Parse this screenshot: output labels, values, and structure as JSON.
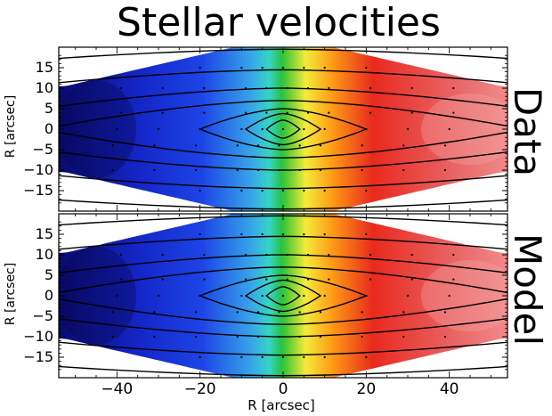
{
  "chart_data": {
    "type": "heatmap",
    "title": "Stellar velocities",
    "panels": [
      {
        "label": "Data",
        "ylabel": "R [arcsec]"
      },
      {
        "label": "Model",
        "ylabel": "R [arcsec]"
      }
    ],
    "xlabel": "R [arcsec]",
    "xlim": [
      -54,
      54
    ],
    "ylim": [
      -20,
      20
    ],
    "xticks": [
      -40,
      -20,
      0,
      20,
      40
    ],
    "yticks": [
      -15,
      -10,
      -5,
      0,
      5,
      10,
      15
    ],
    "colormap": [
      "#0a0a6e",
      "#1d3fe0",
      "#32c6d8",
      "#2fbf3c",
      "#f7e83c",
      "#ff8a12",
      "#e62020",
      "#ee7a7a"
    ],
    "velocity_color_note": "blue = approaching (negative), red = receding (positive)",
    "contours": "isophotes",
    "grid": false
  }
}
